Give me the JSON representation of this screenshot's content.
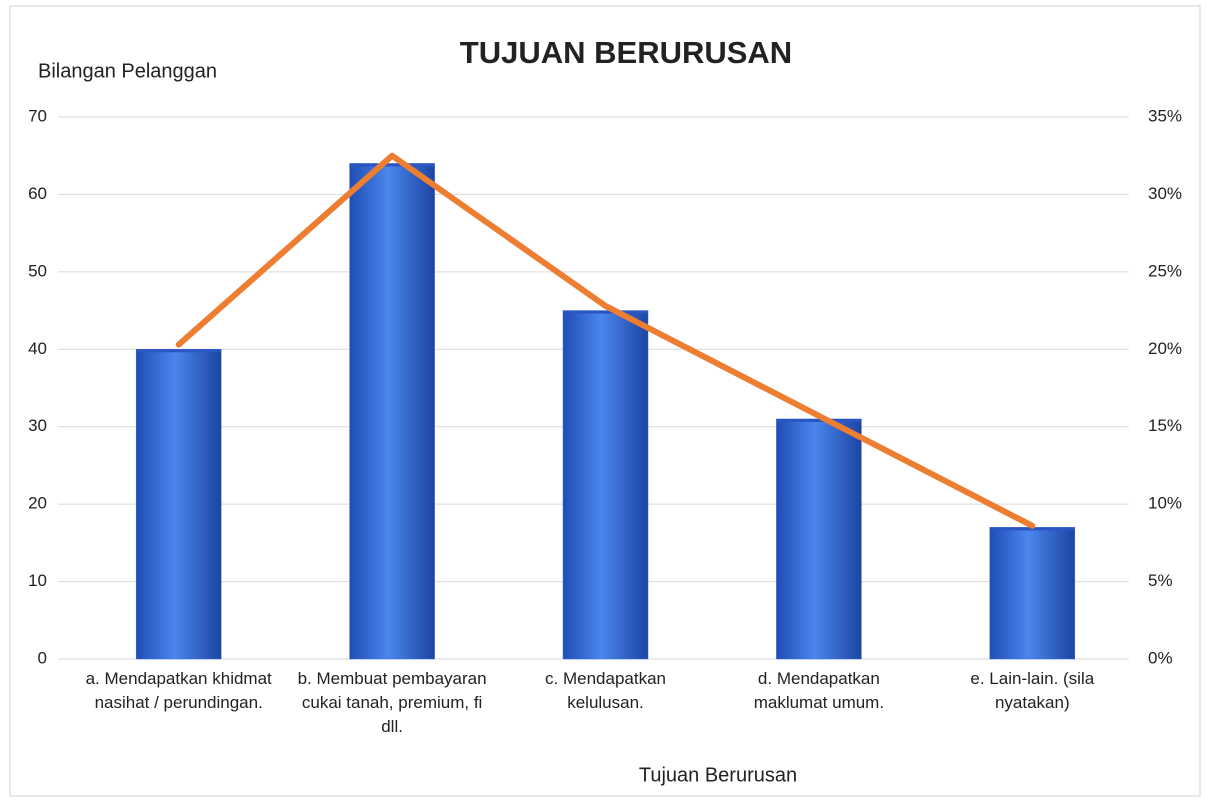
{
  "chart_data": {
    "type": "bar",
    "title": "TUJUAN BERURUSAN",
    "y_axis_label": "Bilangan Pelanggan",
    "x_axis_label": "Tujuan Berurusan",
    "categories": [
      "a. Mendapatkan khidmat nasihat / perundingan.",
      "b. Membuat pembayaran cukai tanah, premium, fi dll.",
      "c. Mendapatkan kelulusan.",
      "d. Mendapatkan maklumat umum.",
      "e. Lain-lain. (sila nyatakan)"
    ],
    "series": [
      {
        "type": "bar",
        "color": "#3a6fd8",
        "values": [
          40,
          64,
          45,
          31,
          17
        ]
      },
      {
        "type": "line",
        "axis": "y2",
        "color": "#ed7d31",
        "values": [
          20.3,
          32.5,
          22.8,
          15.7,
          8.6
        ]
      }
    ],
    "ylim": [
      0,
      70
    ],
    "yticks": [
      0,
      10,
      20,
      30,
      40,
      50,
      60,
      70
    ],
    "y2lim": [
      0,
      35
    ],
    "y2ticks": [
      {
        "value": 0,
        "label": "0%"
      },
      {
        "value": 5,
        "label": "5%"
      },
      {
        "value": 10,
        "label": "10%"
      },
      {
        "value": 15,
        "label": "15%"
      },
      {
        "value": 20,
        "label": "20%"
      },
      {
        "value": 25,
        "label": "25%"
      },
      {
        "value": 30,
        "label": "30%"
      },
      {
        "value": 35,
        "label": "35%"
      }
    ],
    "grid": true
  }
}
